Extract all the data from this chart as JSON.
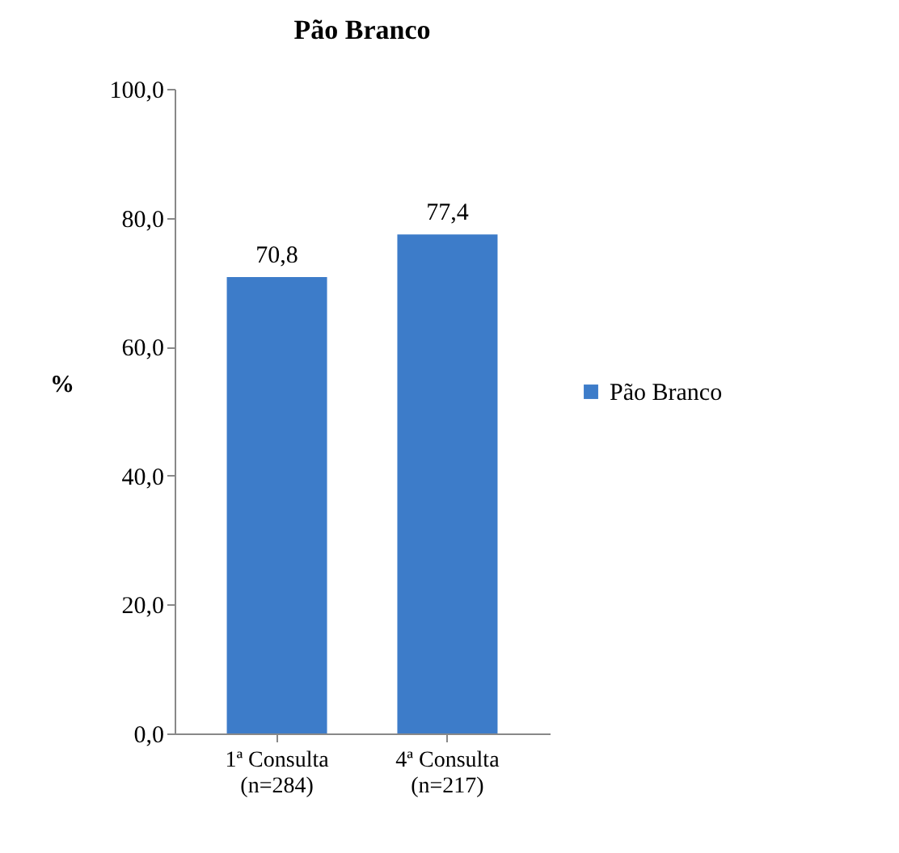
{
  "chart_data": {
    "type": "bar",
    "title": "Pão Branco",
    "ylabel": "%",
    "categories": [
      "1ª Consulta\n(n=284)",
      "4ª Consulta\n(n=217)"
    ],
    "series": [
      {
        "name": "Pão Branco",
        "color": "#3d7cc9",
        "values": [
          70.8,
          77.4
        ],
        "value_labels": [
          "70,8",
          "77,4"
        ]
      }
    ],
    "ylim": [
      0,
      100
    ],
    "yticks": [
      {
        "value": 0,
        "label": "0,0"
      },
      {
        "value": 20,
        "label": "20,0"
      },
      {
        "value": 40,
        "label": "40,0"
      },
      {
        "value": 60,
        "label": "60,0"
      },
      {
        "value": 80,
        "label": "80,0"
      },
      {
        "value": 100,
        "label": "100,0"
      }
    ],
    "grid": false,
    "legend": "right"
  }
}
